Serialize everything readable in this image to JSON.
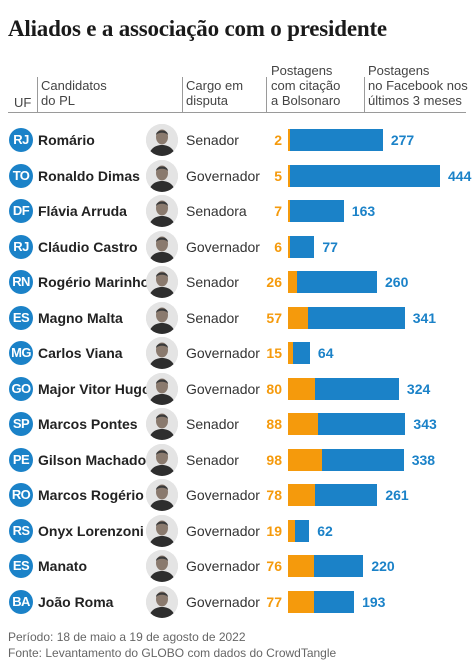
{
  "title": "Aliados e a associação com o presidente",
  "headers": {
    "uf": "UF",
    "candidatos_1": "Candidatos",
    "candidatos_2": "do PL",
    "cargo_1": "Cargo em",
    "cargo_2": "disputa",
    "cit_1": "Postagens",
    "cit_2": "com citação",
    "cit_3": "a Bolsonaro",
    "fb_1": "Postagens",
    "fb_2": "no Facebook nos",
    "fb_3": "últimos 3 meses"
  },
  "chart_data": {
    "type": "bar",
    "title": "Aliados e a associação com o presidente",
    "series": [
      {
        "name": "Postagens com citação a Bolsonaro",
        "color": "#f59a0c",
        "values": [
          2,
          5,
          7,
          6,
          26,
          57,
          15,
          80,
          88,
          98,
          78,
          19,
          76,
          77
        ]
      },
      {
        "name": "Postagens no Facebook nos últimos 3 meses",
        "color": "#1b82c8",
        "values": [
          277,
          444,
          163,
          77,
          260,
          341,
          64,
          324,
          343,
          338,
          261,
          62,
          220,
          193
        ]
      }
    ],
    "categories": [
      "Romário",
      "Ronaldo Dimas",
      "Flávia Arruda",
      "Cláudio Castro",
      "Rogério Marinho",
      "Magno Malta",
      "Carlos Viana",
      "Major Vitor Hugo",
      "Marcos Pontes",
      "Gilson Machado",
      "Marcos Rogério",
      "Onyx Lorenzoni",
      "Manato",
      "João Roma"
    ],
    "rows": [
      {
        "uf": "RJ",
        "name": "Romário",
        "cargo": "Senador",
        "citacao": 2,
        "facebook": 277
      },
      {
        "uf": "TO",
        "name": "Ronaldo Dimas",
        "cargo": "Governador",
        "citacao": 5,
        "facebook": 444
      },
      {
        "uf": "DF",
        "name": "Flávia Arruda",
        "cargo": "Senadora",
        "citacao": 7,
        "facebook": 163
      },
      {
        "uf": "RJ",
        "name": "Cláudio Castro",
        "cargo": "Governador",
        "citacao": 6,
        "facebook": 77
      },
      {
        "uf": "RN",
        "name": "Rogério Marinho",
        "cargo": "Senador",
        "citacao": 26,
        "facebook": 260
      },
      {
        "uf": "ES",
        "name": "Magno Malta",
        "cargo": "Senador",
        "citacao": 57,
        "facebook": 341
      },
      {
        "uf": "MG",
        "name": "Carlos Viana",
        "cargo": "Governador",
        "citacao": 15,
        "facebook": 64
      },
      {
        "uf": "GO",
        "name": "Major Vitor Hugo",
        "cargo": "Governador",
        "citacao": 80,
        "facebook": 324
      },
      {
        "uf": "SP",
        "name": "Marcos Pontes",
        "cargo": "Senador",
        "citacao": 88,
        "facebook": 343
      },
      {
        "uf": "PE",
        "name": "Gilson Machado",
        "cargo": "Senador",
        "citacao": 98,
        "facebook": 338
      },
      {
        "uf": "RO",
        "name": "Marcos Rogério",
        "cargo": "Governador",
        "citacao": 78,
        "facebook": 261
      },
      {
        "uf": "RS",
        "name": "Onyx Lorenzoni",
        "cargo": "Governador",
        "citacao": 19,
        "facebook": 62
      },
      {
        "uf": "ES",
        "name": "Manato",
        "cargo": "Governador",
        "citacao": 76,
        "facebook": 220
      },
      {
        "uf": "BA",
        "name": "João Roma",
        "cargo": "Governador",
        "citacao": 77,
        "facebook": 193
      }
    ]
  },
  "footer": {
    "periodo": "Período: 18 de maio a 19 de agosto de 2022",
    "fonte": "Fonte: Levantamento do GLOBO com dados do CrowdTangle"
  }
}
